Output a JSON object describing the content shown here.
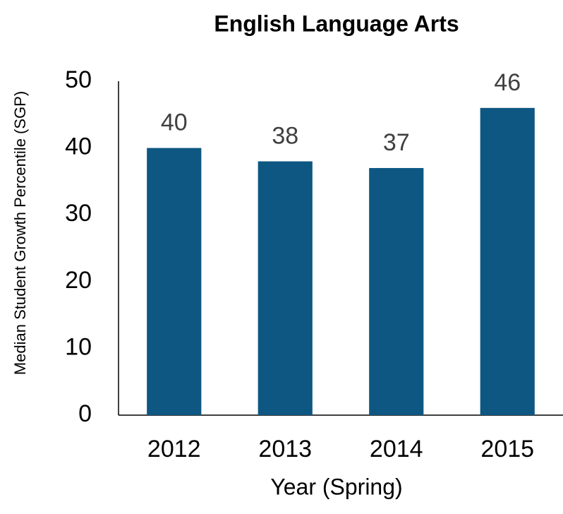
{
  "chart_data": {
    "type": "bar",
    "title": "English Language Arts",
    "x_label": "Year (Spring)",
    "y_label": "Median Student Growth Percentile (SGP)",
    "categories": [
      "2012",
      "2013",
      "2014",
      "2015"
    ],
    "values": [
      40,
      38,
      37,
      46
    ],
    "color": "#0e5782",
    "ylim": [
      0,
      50
    ],
    "yticks": [
      0,
      10,
      20,
      30,
      40,
      50
    ],
    "grid": false,
    "data_labels": true
  }
}
